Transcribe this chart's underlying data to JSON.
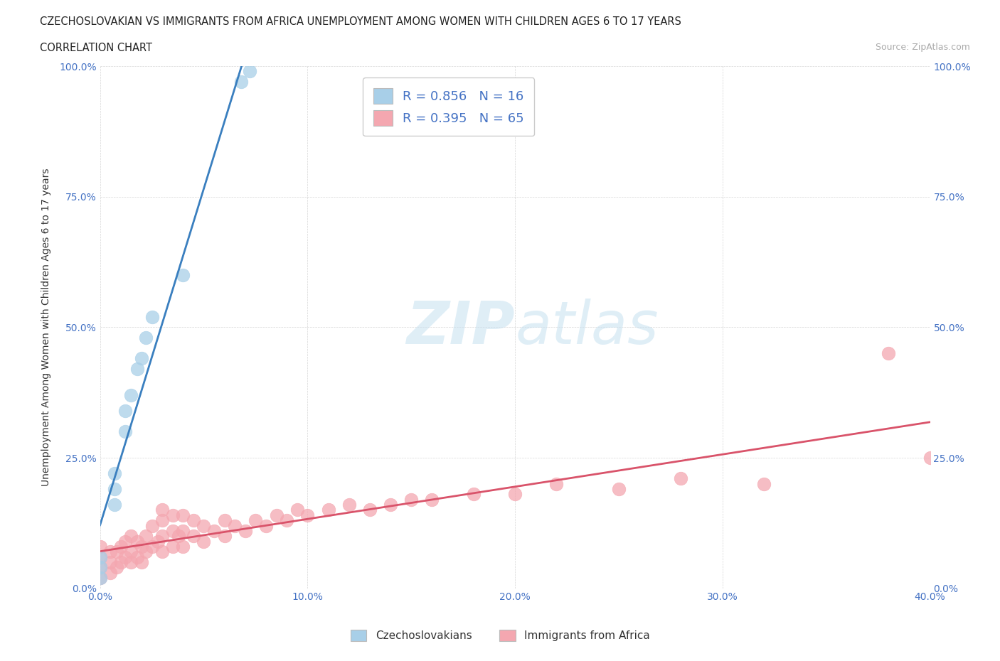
{
  "title_line1": "CZECHOSLOVAKIAN VS IMMIGRANTS FROM AFRICA UNEMPLOYMENT AMONG WOMEN WITH CHILDREN AGES 6 TO 17 YEARS",
  "title_line2": "CORRELATION CHART",
  "source_text": "Source: ZipAtlas.com",
  "ylabel": "Unemployment Among Women with Children Ages 6 to 17 years",
  "xlim": [
    0.0,
    0.4
  ],
  "ylim": [
    0.0,
    1.0
  ],
  "xtick_labels": [
    "0.0%",
    "10.0%",
    "20.0%",
    "30.0%",
    "40.0%"
  ],
  "xtick_vals": [
    0.0,
    0.1,
    0.2,
    0.3,
    0.4
  ],
  "ytick_labels": [
    "0.0%",
    "25.0%",
    "50.0%",
    "75.0%",
    "100.0%"
  ],
  "ytick_vals": [
    0.0,
    0.25,
    0.5,
    0.75,
    1.0
  ],
  "czech_color": "#a8cfe8",
  "africa_color": "#f4a7b0",
  "czech_line_color": "#3a7fbf",
  "africa_line_color": "#d9536a",
  "R_czech": 0.856,
  "N_czech": 16,
  "R_africa": 0.395,
  "N_africa": 65,
  "legend_label_czech": "Czechoslovakians",
  "legend_label_africa": "Immigrants from Africa",
  "watermark_text": "ZIPatlas",
  "czech_x": [
    0.0,
    0.0,
    0.0,
    0.007,
    0.007,
    0.007,
    0.012,
    0.012,
    0.015,
    0.018,
    0.02,
    0.022,
    0.025,
    0.04,
    0.068,
    0.072
  ],
  "czech_y": [
    0.02,
    0.04,
    0.06,
    0.16,
    0.19,
    0.22,
    0.3,
    0.34,
    0.37,
    0.42,
    0.44,
    0.48,
    0.52,
    0.6,
    0.97,
    0.99
  ],
  "africa_x": [
    0.0,
    0.0,
    0.0,
    0.0,
    0.005,
    0.005,
    0.005,
    0.008,
    0.008,
    0.01,
    0.01,
    0.012,
    0.012,
    0.015,
    0.015,
    0.015,
    0.018,
    0.018,
    0.02,
    0.02,
    0.022,
    0.022,
    0.025,
    0.025,
    0.028,
    0.03,
    0.03,
    0.03,
    0.03,
    0.035,
    0.035,
    0.035,
    0.038,
    0.04,
    0.04,
    0.04,
    0.045,
    0.045,
    0.05,
    0.05,
    0.055,
    0.06,
    0.06,
    0.065,
    0.07,
    0.075,
    0.08,
    0.085,
    0.09,
    0.095,
    0.1,
    0.11,
    0.12,
    0.13,
    0.14,
    0.15,
    0.16,
    0.18,
    0.2,
    0.22,
    0.25,
    0.28,
    0.32,
    0.38,
    0.4
  ],
  "africa_y": [
    0.02,
    0.04,
    0.06,
    0.08,
    0.03,
    0.05,
    0.07,
    0.04,
    0.07,
    0.05,
    0.08,
    0.06,
    0.09,
    0.05,
    0.07,
    0.1,
    0.06,
    0.09,
    0.05,
    0.08,
    0.07,
    0.1,
    0.08,
    0.12,
    0.09,
    0.07,
    0.1,
    0.13,
    0.15,
    0.08,
    0.11,
    0.14,
    0.1,
    0.08,
    0.11,
    0.14,
    0.1,
    0.13,
    0.09,
    0.12,
    0.11,
    0.1,
    0.13,
    0.12,
    0.11,
    0.13,
    0.12,
    0.14,
    0.13,
    0.15,
    0.14,
    0.15,
    0.16,
    0.15,
    0.16,
    0.17,
    0.17,
    0.18,
    0.18,
    0.2,
    0.19,
    0.21,
    0.2,
    0.45,
    0.25
  ]
}
